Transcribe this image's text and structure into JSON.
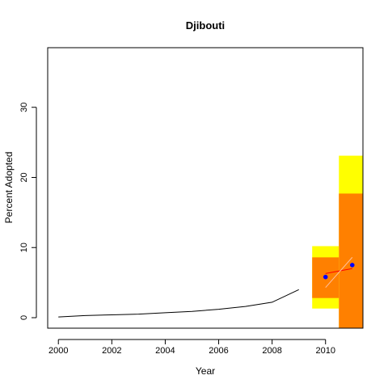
{
  "chart_data": {
    "type": "line",
    "title": "Djibouti",
    "xlabel": "Year",
    "ylabel": "Percent Adopted",
    "xlim": [
      1999.6,
      2011.4
    ],
    "ylim": [
      -1.5,
      38.5
    ],
    "x_ticks": [
      2000,
      2002,
      2004,
      2006,
      2008,
      2010
    ],
    "y_ticks": [
      0,
      10,
      20,
      30
    ],
    "series": [
      {
        "x": [
          2000,
          2001,
          2002,
          2003,
          2004,
          2005,
          2006,
          2007,
          2008,
          2009
        ],
        "values": [
          0.1,
          0.3,
          0.4,
          0.5,
          0.7,
          0.9,
          1.2,
          1.6,
          2.2,
          4.0
        ]
      }
    ],
    "bands": [
      {
        "x_from": 2009.5,
        "x_to": 2010.5,
        "outer": [
          1.3,
          10.2
        ],
        "inner": [
          2.8,
          8.6
        ]
      },
      {
        "x_from": 2010.5,
        "x_to": 2011.4,
        "outer": [
          -1.5,
          23.1
        ],
        "inner": [
          -1.5,
          17.7
        ]
      }
    ],
    "points": [
      {
        "x": 2010,
        "y": 5.8
      },
      {
        "x": 2011,
        "y": 7.5
      }
    ],
    "fit_lines": [
      {
        "color": "#ff0000",
        "from": [
          2010,
          6.3
        ],
        "to": [
          2011,
          7.0
        ]
      },
      {
        "color": "#ffc0a0",
        "from": [
          2010,
          4.3
        ],
        "to": [
          2011,
          8.6
        ]
      }
    ],
    "colors": {
      "line": "#000000",
      "outer_band": "#ffff00",
      "inner_band": "#ff8000",
      "points": "#0000ff"
    }
  }
}
